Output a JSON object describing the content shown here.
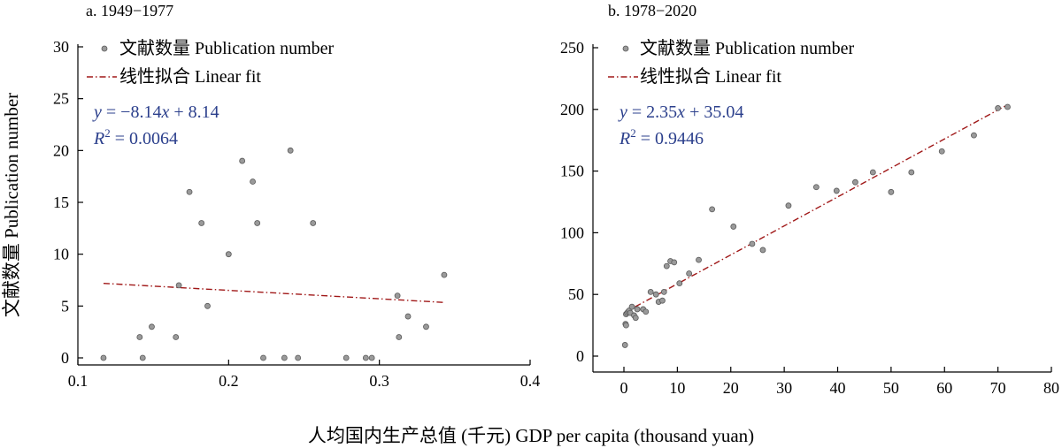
{
  "axis_titles": {
    "y": "文献数量 Publication number",
    "x": "人均国内生产总值 (千元) GDP per capita (thousand yuan)"
  },
  "colors": {
    "point_fill": "#9a9a9a",
    "point_stroke": "#5a5a5a",
    "fit_line": "#a01818",
    "equation_text": "#2b3f8c"
  },
  "chart_data": [
    {
      "type": "scatter",
      "title": "a. 1949−1977",
      "legend": {
        "scatter": "文献数量 Publication number",
        "line": "线性拟合 Linear fit",
        "placement": "top-left"
      },
      "equation": {
        "y_var": "y",
        "eq_rest": " = −8.14",
        "x_var": "x",
        "eq_tail": " + 8.14",
        "r2_var": "R",
        "r2_rest": " = 0.0064"
      },
      "xlim": [
        0.1,
        0.4
      ],
      "ylim": [
        0,
        30
      ],
      "xticks": [
        "0.1",
        "0.2",
        "0.3",
        "0.4"
      ],
      "yticks": [
        "0",
        "5",
        "10",
        "15",
        "20",
        "25",
        "30"
      ],
      "xtick_values": [
        0.1,
        0.2,
        0.3,
        0.4
      ],
      "ytick_values": [
        0,
        5,
        10,
        15,
        20,
        25,
        30
      ],
      "fit": {
        "slope": -8.14,
        "intercept": 8.14,
        "x_range": [
          0.117,
          0.343
        ]
      },
      "points": [
        [
          0.117,
          0
        ],
        [
          0.141,
          2
        ],
        [
          0.143,
          0
        ],
        [
          0.149,
          3
        ],
        [
          0.165,
          2
        ],
        [
          0.167,
          7
        ],
        [
          0.174,
          16
        ],
        [
          0.182,
          13
        ],
        [
          0.186,
          5
        ],
        [
          0.2,
          10
        ],
        [
          0.209,
          19
        ],
        [
          0.216,
          17
        ],
        [
          0.219,
          13
        ],
        [
          0.223,
          0
        ],
        [
          0.237,
          0
        ],
        [
          0.241,
          20
        ],
        [
          0.246,
          0
        ],
        [
          0.256,
          13
        ],
        [
          0.278,
          0
        ],
        [
          0.291,
          0
        ],
        [
          0.295,
          0
        ],
        [
          0.312,
          6
        ],
        [
          0.313,
          2
        ],
        [
          0.319,
          4
        ],
        [
          0.331,
          3
        ],
        [
          0.343,
          8
        ]
      ]
    },
    {
      "type": "scatter",
      "title": "b. 1978−2020",
      "legend": {
        "scatter": "文献数量 Publication number",
        "line": "线性拟合 Linear fit",
        "placement": "top-left"
      },
      "equation": {
        "y_var": "y",
        "eq_rest": " = 2.35",
        "x_var": "x",
        "eq_tail": " + 35.04",
        "r2_var": "R",
        "r2_rest": " = 0.9446"
      },
      "xlim": [
        -5,
        80
      ],
      "ylim": [
        -10,
        250
      ],
      "xticks": [
        "0",
        "10",
        "20",
        "30",
        "40",
        "50",
        "60",
        "70",
        "80"
      ],
      "yticks": [
        "0",
        "50",
        "100",
        "150",
        "200",
        "250"
      ],
      "xtick_values": [
        0,
        10,
        20,
        30,
        40,
        50,
        60,
        70,
        80
      ],
      "ytick_values": [
        0,
        50,
        100,
        150,
        200,
        250
      ],
      "fit": {
        "slope": 2.35,
        "intercept": 35.04,
        "x_range": [
          0,
          71.8
        ]
      },
      "points": [
        [
          0.2,
          9
        ],
        [
          0.3,
          26
        ],
        [
          0.4,
          25
        ],
        [
          0.4,
          34
        ],
        [
          0.6,
          35
        ],
        [
          0.8,
          36
        ],
        [
          1.0,
          37
        ],
        [
          1.2,
          35
        ],
        [
          1.5,
          40
        ],
        [
          1.9,
          33
        ],
        [
          2.2,
          31
        ],
        [
          2.5,
          38
        ],
        [
          3.6,
          38
        ],
        [
          4.1,
          36
        ],
        [
          5.0,
          52
        ],
        [
          6.0,
          50
        ],
        [
          6.5,
          44
        ],
        [
          7.2,
          45
        ],
        [
          7.5,
          52
        ],
        [
          8.0,
          73
        ],
        [
          8.7,
          77
        ],
        [
          9.4,
          76
        ],
        [
          10.4,
          59
        ],
        [
          12.2,
          67
        ],
        [
          14.0,
          78
        ],
        [
          16.5,
          119
        ],
        [
          20.5,
          105
        ],
        [
          24.0,
          91
        ],
        [
          26.0,
          86
        ],
        [
          30.8,
          122
        ],
        [
          36.0,
          137
        ],
        [
          39.8,
          134
        ],
        [
          43.3,
          141
        ],
        [
          46.6,
          149
        ],
        [
          50.0,
          133
        ],
        [
          53.8,
          149
        ],
        [
          59.5,
          166
        ],
        [
          65.5,
          179
        ],
        [
          70.0,
          201
        ],
        [
          71.8,
          202
        ]
      ]
    }
  ]
}
